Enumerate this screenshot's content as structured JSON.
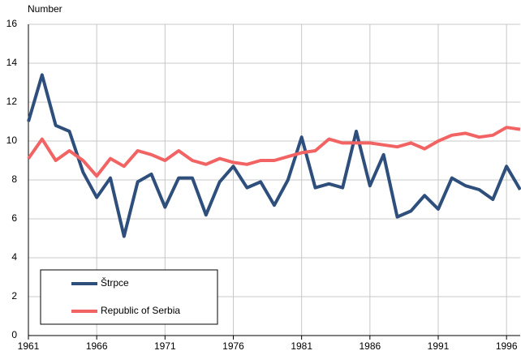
{
  "chart_data": {
    "type": "line",
    "y_label": "Number",
    "x": [
      1961,
      1962,
      1963,
      1964,
      1965,
      1966,
      1967,
      1968,
      1969,
      1970,
      1971,
      1972,
      1973,
      1974,
      1975,
      1976,
      1977,
      1978,
      1979,
      1980,
      1981,
      1982,
      1983,
      1984,
      1985,
      1986,
      1987,
      1988,
      1989,
      1990,
      1991,
      1992,
      1993,
      1994,
      1995,
      1996,
      1997
    ],
    "series": [
      {
        "name": "Štrpce",
        "color": "#2e4f7c",
        "values": [
          11.0,
          13.4,
          10.8,
          10.5,
          8.4,
          7.1,
          8.1,
          5.1,
          7.9,
          8.3,
          6.6,
          8.1,
          8.1,
          6.2,
          7.9,
          8.7,
          7.6,
          7.9,
          6.7,
          8.0,
          10.2,
          7.6,
          7.8,
          7.6,
          10.5,
          7.7,
          9.3,
          6.1,
          6.4,
          7.2,
          6.5,
          8.1,
          7.7,
          7.5,
          7.0,
          8.7,
          7.5
        ]
      },
      {
        "name": "Republic of Serbia",
        "color": "#f26464",
        "values": [
          9.1,
          10.1,
          9.0,
          9.5,
          9.0,
          8.2,
          9.1,
          8.7,
          9.5,
          9.3,
          9.0,
          9.5,
          9.0,
          8.8,
          9.1,
          8.9,
          8.8,
          9.0,
          9.0,
          9.2,
          9.4,
          9.5,
          10.1,
          9.9,
          9.9,
          9.9,
          9.8,
          9.7,
          9.9,
          9.6,
          10.0,
          10.3,
          10.4,
          10.2,
          10.3,
          10.7,
          10.6
        ]
      }
    ],
    "xlim": [
      1961,
      1997
    ],
    "xticks": [
      1961,
      1966,
      1971,
      1976,
      1981,
      1986,
      1991,
      1996
    ],
    "ylim": [
      0,
      16
    ],
    "yticks": [
      0,
      2,
      4,
      6,
      8,
      10,
      12,
      14,
      16
    ],
    "grid": true,
    "legend": "lower left"
  }
}
